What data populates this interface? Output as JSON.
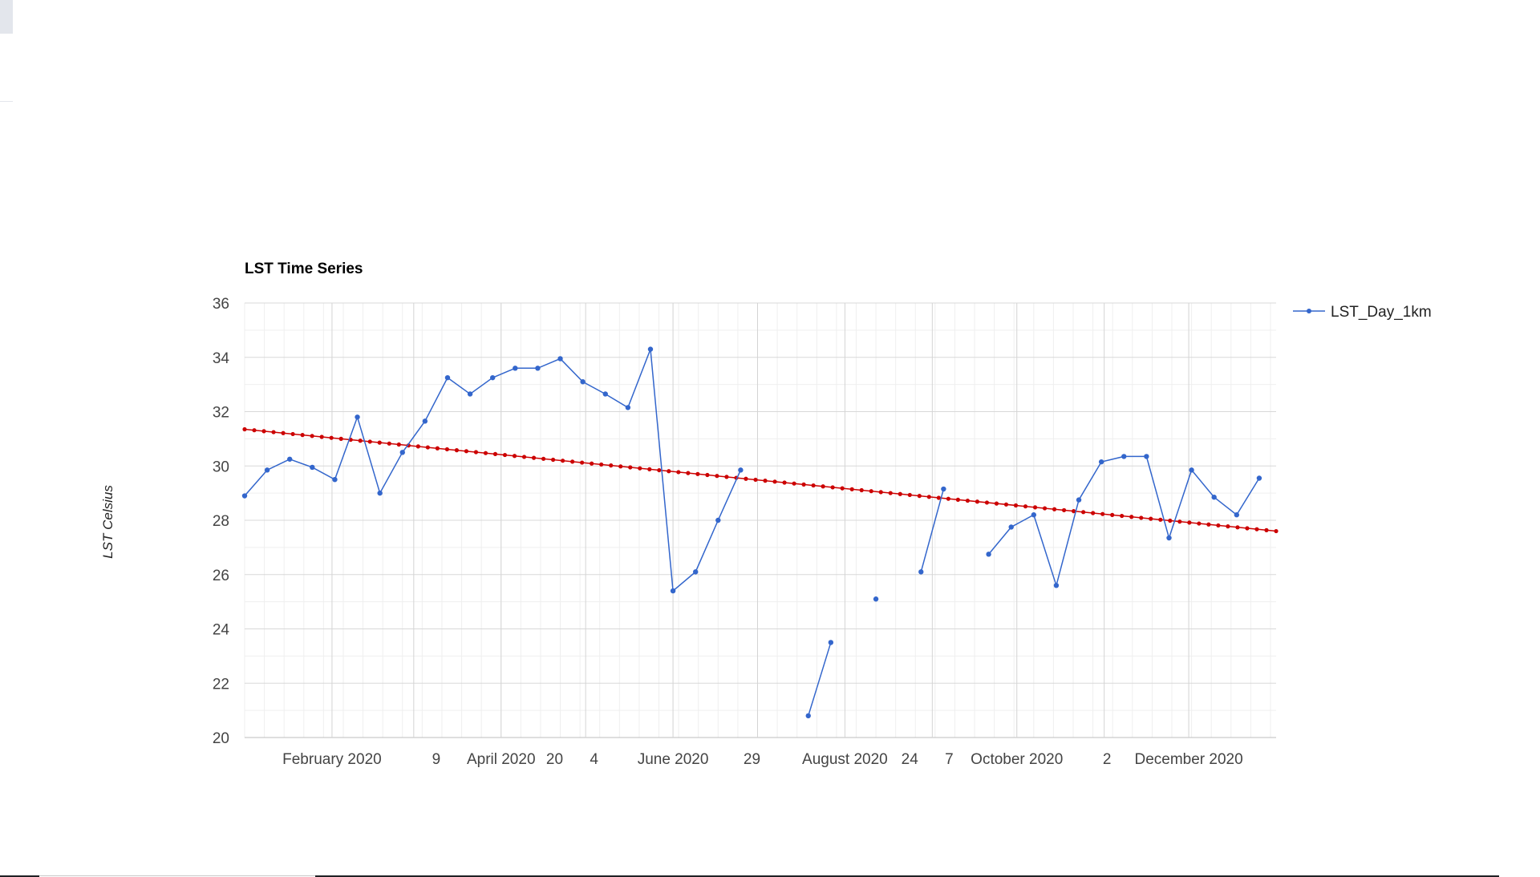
{
  "chart_data": {
    "type": "line",
    "title": "LST Time Series",
    "ylabel": "LST Celsius",
    "xlabel": "",
    "ylim": [
      20,
      36
    ],
    "yticks": [
      20,
      22,
      24,
      26,
      28,
      30,
      32,
      34,
      36
    ],
    "xlim": [
      "2020-01-01",
      "2021-01-01"
    ],
    "x_tick_labels": [
      {
        "date": "2020-02-01",
        "label": "February 2020"
      },
      {
        "date": "2020-03-09",
        "label": "9"
      },
      {
        "date": "2020-04-01",
        "label": "April 2020"
      },
      {
        "date": "2020-04-20",
        "label": "20"
      },
      {
        "date": "2020-05-04",
        "label": "4"
      },
      {
        "date": "2020-06-01",
        "label": "June 2020"
      },
      {
        "date": "2020-06-29",
        "label": "29"
      },
      {
        "date": "2020-08-01",
        "label": "August 2020"
      },
      {
        "date": "2020-08-24",
        "label": "24"
      },
      {
        "date": "2020-09-07",
        "label": "7"
      },
      {
        "date": "2020-10-01",
        "label": "October 2020"
      },
      {
        "date": "2020-11-02",
        "label": "2"
      },
      {
        "date": "2020-12-01",
        "label": "December 2020"
      }
    ],
    "grid": true,
    "legend_position": "right",
    "series": [
      {
        "name": "LST_Day_1km",
        "color": "#3366cc",
        "x": [
          "2020-01-01",
          "2020-01-09",
          "2020-01-17",
          "2020-01-25",
          "2020-02-02",
          "2020-02-10",
          "2020-02-18",
          "2020-02-26",
          "2020-03-05",
          "2020-03-13",
          "2020-03-21",
          "2020-03-29",
          "2020-04-06",
          "2020-04-14",
          "2020-04-22",
          "2020-04-30",
          "2020-05-08",
          "2020-05-16",
          "2020-05-24",
          "2020-06-01",
          "2020-06-09",
          "2020-06-17",
          "2020-06-25",
          "2020-07-03",
          "2020-07-11",
          "2020-07-19",
          "2020-07-27",
          "2020-08-04",
          "2020-08-12",
          "2020-08-20",
          "2020-08-28",
          "2020-09-05",
          "2020-09-13",
          "2020-09-21",
          "2020-09-29",
          "2020-10-07",
          "2020-10-15",
          "2020-10-23",
          "2020-10-31",
          "2020-11-08",
          "2020-11-16",
          "2020-11-24",
          "2020-12-02",
          "2020-12-10",
          "2020-12-18",
          "2020-12-26"
        ],
        "values": [
          28.9,
          29.85,
          30.25,
          29.95,
          29.5,
          31.8,
          29.0,
          30.5,
          31.65,
          33.25,
          32.65,
          33.25,
          33.6,
          33.6,
          33.95,
          33.1,
          32.65,
          32.15,
          34.3,
          25.4,
          26.1,
          28.0,
          29.85,
          null,
          null,
          20.8,
          23.5,
          null,
          25.1,
          null,
          26.1,
          29.15,
          null,
          26.75,
          27.75,
          28.2,
          25.6,
          28.75,
          30.15,
          30.35,
          30.35,
          27.35,
          29.85,
          28.85,
          28.2,
          29.55
        ]
      }
    ],
    "trendline": {
      "color": "#cc0000",
      "start": {
        "x": "2020-01-01",
        "y": 31.35
      },
      "end": {
        "x": "2021-01-01",
        "y": 27.6
      },
      "points": 108
    }
  }
}
